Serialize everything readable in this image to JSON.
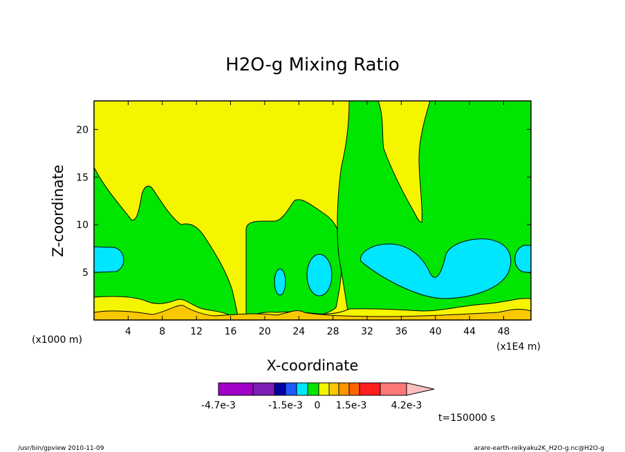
{
  "chart_data": {
    "type": "heatmap",
    "title": "H2O-g Mixing Ratio",
    "xlabel": "X-coordinate",
    "ylabel": "Z-coordinate",
    "x_unit_left": "(x1000 m)",
    "x_unit_right": "(x1E4 m)",
    "x_ticks": [
      "4",
      "8",
      "12",
      "16",
      "20",
      "24",
      "28",
      "32",
      "36",
      "40",
      "44",
      "48"
    ],
    "x_tick_values": [
      4,
      8,
      12,
      16,
      20,
      24,
      28,
      32,
      36,
      40,
      44,
      48
    ],
    "y_ticks": [
      "5",
      "10",
      "15",
      "20"
    ],
    "y_tick_values": [
      5,
      10,
      15,
      20
    ],
    "xlim": [
      0,
      51.2
    ],
    "ylim": [
      0,
      23
    ],
    "time_label": "t=150000 s",
    "colorbar": {
      "labels": [
        "-4.7e-3",
        "-1.5e-3",
        "0",
        "1.5e-3",
        "4.2e-3"
      ],
      "label_values": [
        -0.0047,
        -0.0015,
        0,
        0.0015,
        0.0042
      ],
      "colors": [
        "#a000c8",
        "#7d1eb4",
        "#0000a0",
        "#1e5aff",
        "#00e6ff",
        "#00e600",
        "#f5f500",
        "#fac800",
        "#ff9600",
        "#ff6400",
        "#ff1e1e",
        "#ff7878",
        "#ffbebe"
      ]
    },
    "regions": {
      "background_level": "#f5f500",
      "moist_level": "#00e600",
      "moister_level": "#00e6ff",
      "surface_level": "#fac800"
    }
  },
  "footer": {
    "left": "/usr/bin/gpview  2010-11-09",
    "right": "arare-earth-reikyaku2K_H2O-g.nc@H2O-g"
  }
}
